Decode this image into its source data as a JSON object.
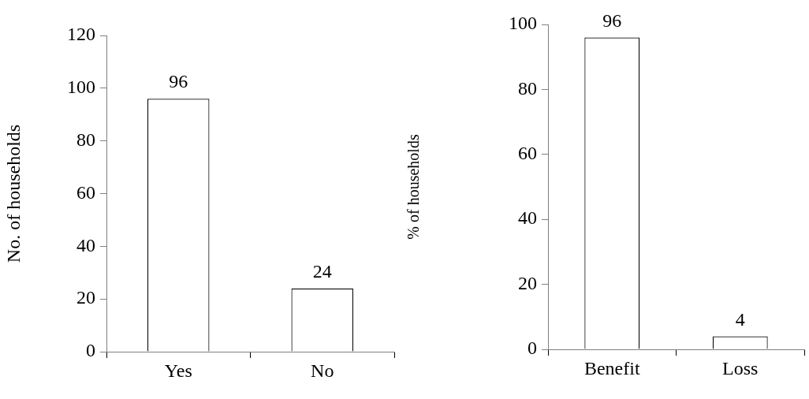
{
  "chart_data": [
    {
      "type": "bar",
      "ylabel": "No. of households",
      "categories": [
        "Yes",
        "No"
      ],
      "values": [
        96,
        24
      ],
      "color": "#ffffff",
      "ylim": [
        0,
        120
      ],
      "yticks": [
        0,
        20,
        40,
        60,
        80,
        100,
        120
      ],
      "grid": false,
      "legend": false,
      "data_labels": true
    },
    {
      "type": "bar",
      "ylabel": "% of households",
      "categories": [
        "Benefit",
        "Loss"
      ],
      "values": [
        96,
        4
      ],
      "color": "#ffffff",
      "ylim": [
        0,
        100
      ],
      "yticks": [
        0,
        20,
        40,
        60,
        80,
        100
      ],
      "grid": false,
      "legend": false,
      "data_labels": true
    }
  ]
}
